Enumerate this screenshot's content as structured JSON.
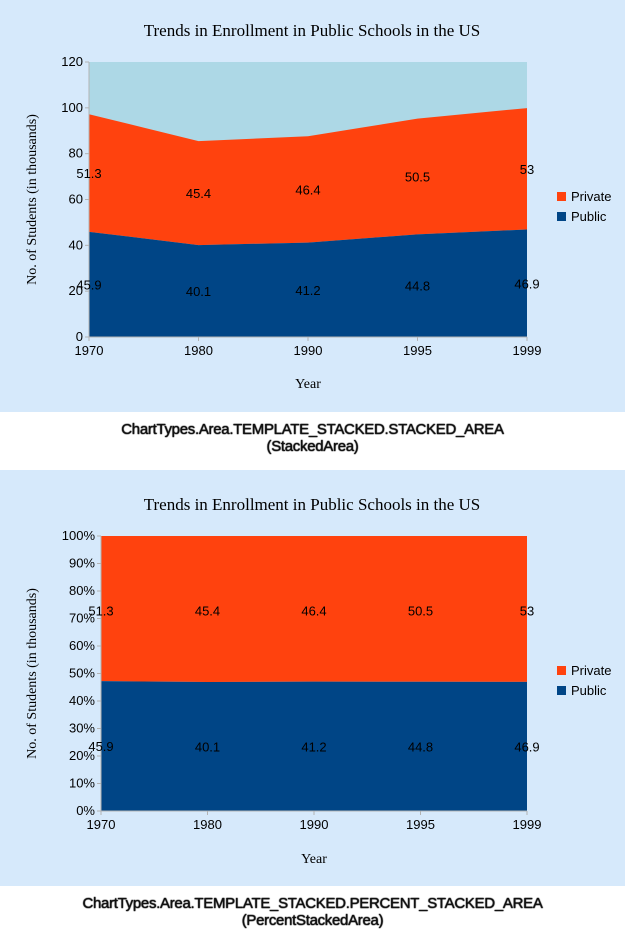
{
  "chart_data": [
    {
      "type": "area",
      "stacking": "stacked",
      "title": "Trends in Enrollment in Public Schools in the US",
      "xlabel": "Year",
      "ylabel": "No. of Students (in thousands)",
      "categories": [
        "1970",
        "1980",
        "1990",
        "1995",
        "1999"
      ],
      "ylim": [
        0,
        120
      ],
      "yticks": [
        "0",
        "20",
        "40",
        "60",
        "80",
        "100",
        "120"
      ],
      "series": [
        {
          "name": "Public",
          "values": [
            45.9,
            40.1,
            41.2,
            44.8,
            46.9
          ],
          "labels": [
            "45.9",
            "40.1",
            "41.2",
            "44.8",
            "46.9"
          ],
          "color": "#004586"
        },
        {
          "name": "Private",
          "values": [
            51.3,
            45.4,
            46.4,
            50.5,
            53
          ],
          "labels": [
            "51.3",
            "45.4",
            "46.4",
            "50.5",
            "53"
          ],
          "color": "#ff420e"
        }
      ],
      "background_color": "#add8e6",
      "legend": "right",
      "grid": false
    },
    {
      "type": "area",
      "stacking": "percent",
      "title": "Trends in Enrollment in Public Schools in the US",
      "xlabel": "Year",
      "ylabel": "No. of Students (in thousands)",
      "categories": [
        "1970",
        "1980",
        "1990",
        "1995",
        "1999"
      ],
      "ylim": [
        0,
        100
      ],
      "yticks": [
        "0%",
        "10%",
        "20%",
        "30%",
        "40%",
        "50%",
        "60%",
        "70%",
        "80%",
        "90%",
        "100%"
      ],
      "series": [
        {
          "name": "Public",
          "values": [
            45.9,
            40.1,
            41.2,
            44.8,
            46.9
          ],
          "labels": [
            "45.9",
            "40.1",
            "41.2",
            "44.8",
            "46.9"
          ],
          "color": "#004586"
        },
        {
          "name": "Private",
          "values": [
            51.3,
            45.4,
            46.4,
            50.5,
            53
          ],
          "labels": [
            "51.3",
            "45.4",
            "46.4",
            "50.5",
            "53"
          ],
          "color": "#ff420e"
        }
      ],
      "legend": "right",
      "grid": false
    }
  ],
  "captions": [
    {
      "line1": "ChartTypes.Area.TEMPLATE_STACKED.STACKED_AREA",
      "line2": "(StackedArea)"
    },
    {
      "line1": "ChartTypes.Area.TEMPLATE_STACKED.PERCENT_STACKED_AREA",
      "line2": "(PercentStackedArea)"
    }
  ]
}
